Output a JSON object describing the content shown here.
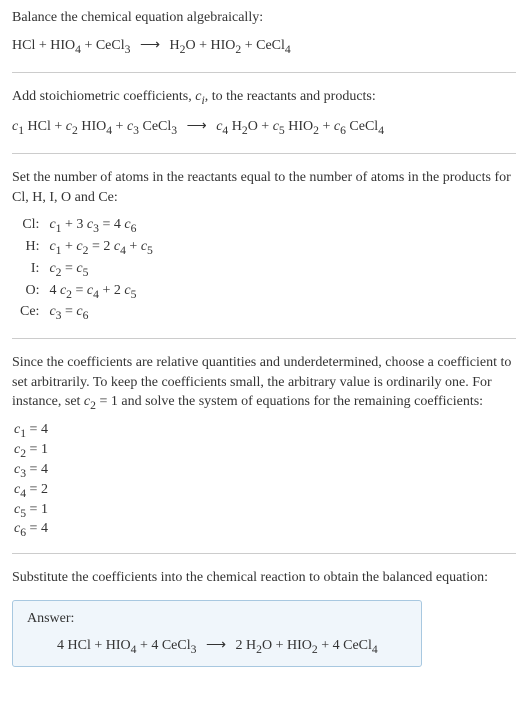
{
  "intro": {
    "line1": "Balance the chemical equation algebraically:",
    "equation": "HCl + HIO<sub>4</sub> + CeCl<sub>3</sub> <span class='arrow'>⟶</span> H<sub>2</sub>O + HIO<sub>2</sub> + CeCl<sub>4</sub>"
  },
  "step1": {
    "text": "Add stoichiometric coefficients, <span class='italic'>c<sub>i</sub></span>, to the reactants and products:",
    "equation": "<span class='italic'>c</span><sub>1</sub> HCl + <span class='italic'>c</span><sub>2</sub> HIO<sub>4</sub> + <span class='italic'>c</span><sub>3</sub> CeCl<sub>3</sub> <span class='arrow'>⟶</span> <span class='italic'>c</span><sub>4</sub> H<sub>2</sub>O + <span class='italic'>c</span><sub>5</sub> HIO<sub>2</sub> + <span class='italic'>c</span><sub>6</sub> CeCl<sub>4</sub>"
  },
  "step2": {
    "text": "Set the number of atoms in the reactants equal to the number of atoms in the products for Cl, H, I, O and Ce:",
    "rows": [
      {
        "label": "Cl:",
        "eq": "<span class='italic'>c</span><sub>1</sub> + 3 <span class='italic'>c</span><sub>3</sub> = 4 <span class='italic'>c</span><sub>6</sub>"
      },
      {
        "label": "H:",
        "eq": "<span class='italic'>c</span><sub>1</sub> + <span class='italic'>c</span><sub>2</sub> = 2 <span class='italic'>c</span><sub>4</sub> + <span class='italic'>c</span><sub>5</sub>"
      },
      {
        "label": "I:",
        "eq": "<span class='italic'>c</span><sub>2</sub> = <span class='italic'>c</span><sub>5</sub>"
      },
      {
        "label": "O:",
        "eq": "4 <span class='italic'>c</span><sub>2</sub> = <span class='italic'>c</span><sub>4</sub> + 2 <span class='italic'>c</span><sub>5</sub>"
      },
      {
        "label": "Ce:",
        "eq": "<span class='italic'>c</span><sub>3</sub> = <span class='italic'>c</span><sub>6</sub>"
      }
    ]
  },
  "step3": {
    "text": "Since the coefficients are relative quantities and underdetermined, choose a coefficient to set arbitrarily. To keep the coefficients small, the arbitrary value is ordinarily one. For instance, set <span class='italic'>c</span><sub>2</sub> = 1 and solve the system of equations for the remaining coefficients:",
    "coefs": [
      "<span class='italic'>c</span><sub>1</sub> = 4",
      "<span class='italic'>c</span><sub>2</sub> = 1",
      "<span class='italic'>c</span><sub>3</sub> = 4",
      "<span class='italic'>c</span><sub>4</sub> = 2",
      "<span class='italic'>c</span><sub>5</sub> = 1",
      "<span class='italic'>c</span><sub>6</sub> = 4"
    ]
  },
  "step4": {
    "text": "Substitute the coefficients into the chemical reaction to obtain the balanced equation:"
  },
  "answer": {
    "label": "Answer:",
    "equation": "4 HCl + HIO<sub>4</sub> + 4 CeCl<sub>3</sub> <span class='arrow'>⟶</span> 2 H<sub>2</sub>O + HIO<sub>2</sub> + 4 CeCl<sub>4</sub>"
  }
}
